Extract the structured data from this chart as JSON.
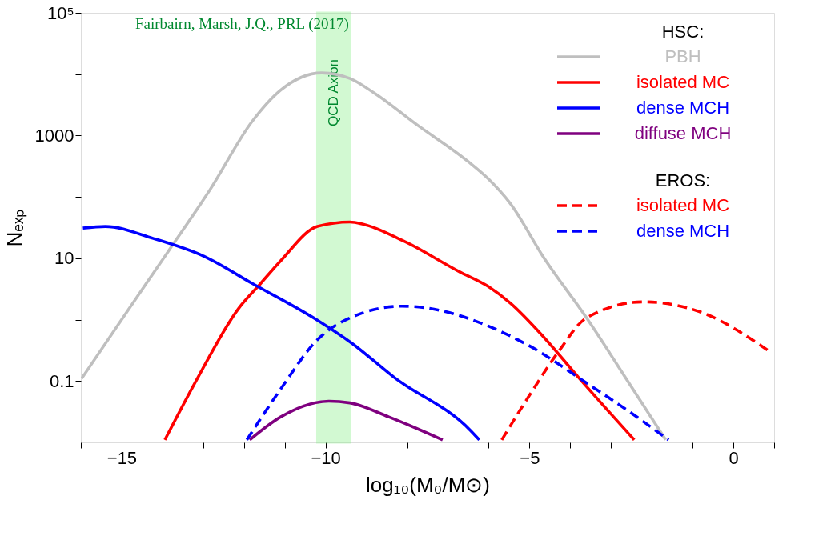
{
  "chart_data": {
    "type": "line",
    "xlabel": "log₁₀(M₀/M⊙)",
    "ylabel": "Nₑₓₚ",
    "legend_title": "HSC:",
    "legend": "top right",
    "log": "y",
    "xlim": [
      -16,
      1
    ],
    "ylim": [
      0.01,
      100000
    ],
    "xticks": [
      {
        "value": -16,
        "label": null
      },
      {
        "value": -15,
        "label": "−15"
      },
      {
        "value": -14,
        "label": null
      },
      {
        "value": -13,
        "label": null
      },
      {
        "value": -12,
        "label": null
      },
      {
        "value": -11,
        "label": null
      },
      {
        "value": -10,
        "label": "−10"
      },
      {
        "value": -9,
        "label": null
      },
      {
        "value": -8,
        "label": null
      },
      {
        "value": -7,
        "label": null
      },
      {
        "value": -6,
        "label": null
      },
      {
        "value": -5,
        "label": "−5"
      },
      {
        "value": -4,
        "label": null
      },
      {
        "value": -3,
        "label": null
      },
      {
        "value": -2,
        "label": null
      },
      {
        "value": -1,
        "label": null
      },
      0,
      {
        "value": 1,
        "label": null
      }
    ],
    "yticks": [
      0.1,
      {
        "value": 1,
        "label": null
      },
      10,
      {
        "value": 100,
        "label": null
      },
      1000,
      {
        "value": 10000,
        "label": null
      },
      {
        "value": 100000,
        "label": "10⁵"
      }
    ],
    "bands": [
      {
        "axis": "x",
        "from": -10.2,
        "to": -9.4,
        "label": "QCD Axion",
        "color": "#80f080"
      }
    ],
    "annotations": [
      "Fairbairn, Marsh, J.Q., PRL (2017)",
      "EROS:"
    ],
    "series": [
      {
        "name": "PBH",
        "color": "#bfbfbf",
        "line_style": "solid",
        "x": [
          -15.98,
          -14.92,
          -13.87,
          -12.83,
          -11.8,
          -11.1,
          -10.09,
          -9.4,
          -8.8,
          -7.76,
          -6.51,
          -6.02,
          -5.47,
          -4.64,
          -3.6,
          -2.56,
          -1.66
        ],
        "values": [
          0.11,
          1.2,
          12.6,
          132,
          1700,
          5500,
          10500,
          8500,
          4900,
          1500,
          380,
          200,
          78,
          10,
          1.07,
          0.093,
          0.011
        ]
      },
      {
        "name": "isolated MC",
        "color": "#ff0000",
        "line_style": "solid",
        "x": [
          -13.94,
          -13.16,
          -12.14,
          -11.59,
          -11.1,
          -10.2,
          -9.4,
          -9.08,
          -8.11,
          -6.71,
          -6.02,
          -5.47,
          -4.64,
          -3.8,
          -2.43
        ],
        "values": [
          0.011,
          0.105,
          1.5,
          3.9,
          9.1,
          33,
          39,
          36,
          19.5,
          6.0,
          3.5,
          1.86,
          0.51,
          0.115,
          0.011
        ]
      },
      {
        "name": "dense MCH",
        "color": "#0000ff",
        "line_style": "solid",
        "x": [
          -15.95,
          -15.4,
          -14.22,
          -12.97,
          -11.8,
          -10.2,
          -9.37,
          -8.32,
          -6.44,
          -6.23
        ],
        "values": [
          31,
          33,
          21,
          10.7,
          3.9,
          0.98,
          0.42,
          0.115,
          0.0155,
          0.011
        ]
      },
      {
        "name": "diffuse MCH",
        "color": "#7f007f",
        "line_style": "solid",
        "x": [
          -11.86,
          -11.1,
          -9.92,
          -9.4,
          -8.45,
          -7.13
        ],
        "values": [
          0.011,
          0.026,
          0.047,
          0.044,
          0.026,
          0.011
        ]
      },
      {
        "name": "isolated MC",
        "color": "#ff0000",
        "line_style": "dashed",
        "x": [
          -5.68,
          -4.99,
          -4.29,
          -3.6,
          -2.21,
          -0.83,
          0.9
        ],
        "values": [
          0.011,
          0.06,
          0.3,
          1.07,
          1.95,
          1.35,
          0.3
        ]
      },
      {
        "name": "dense MCH",
        "color": "#0000ff",
        "line_style": "dashed",
        "x": [
          -11.93,
          -11.1,
          -10.2,
          -9.4,
          -8.11,
          -7.06,
          -6.02,
          -4.99,
          -3.6,
          -2.56,
          -1.59
        ],
        "values": [
          0.011,
          0.074,
          0.47,
          1.07,
          1.66,
          1.35,
          0.79,
          0.37,
          0.093,
          0.032,
          0.011
        ]
      }
    ]
  }
}
